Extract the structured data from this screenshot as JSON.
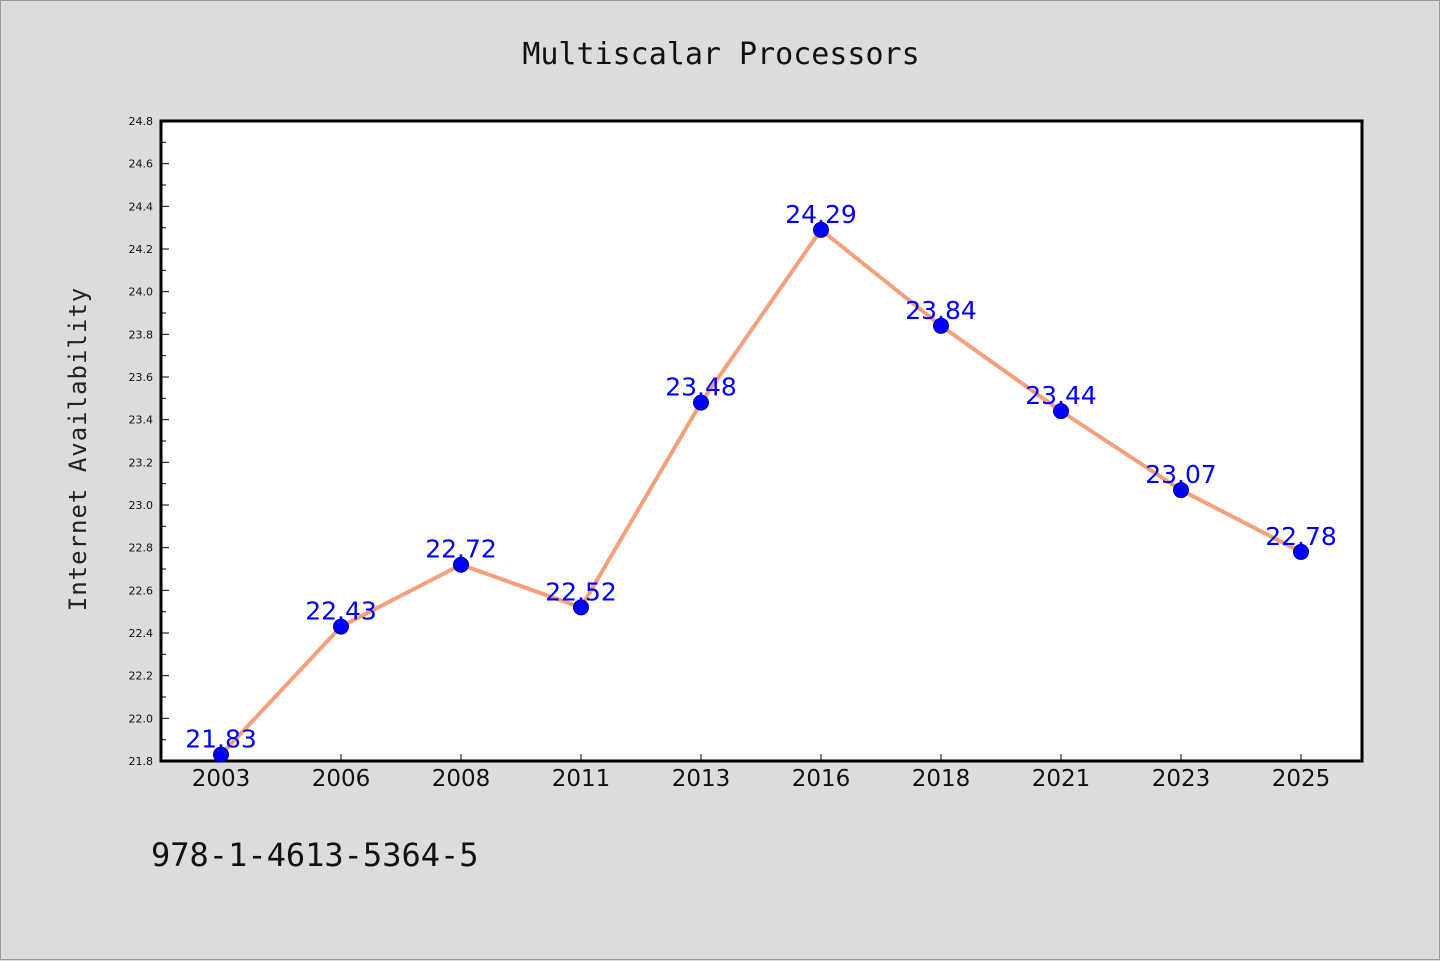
{
  "chart_data": {
    "type": "line",
    "title": "Multiscalar Processors",
    "xlabel": "",
    "ylabel": "Internet Availability",
    "categories": [
      "2003",
      "2006",
      "2008",
      "2011",
      "2013",
      "2016",
      "2018",
      "2021",
      "2023",
      "2025"
    ],
    "series": [
      {
        "values": [
          21.83,
          22.43,
          22.72,
          22.52,
          23.48,
          24.29,
          23.84,
          23.44,
          23.07,
          22.78
        ]
      }
    ],
    "data_labels": [
      "21.83",
      "22.43",
      "22.72",
      "22.52",
      "23.48",
      "24.29",
      "23.84",
      "23.44",
      "23.07",
      "22.78"
    ],
    "ylim": [
      21.8,
      24.8
    ],
    "yticks": [
      21.8,
      22.0,
      22.2,
      22.4,
      22.6,
      22.8,
      23.0,
      23.2,
      23.4,
      23.6,
      23.8,
      24.0,
      24.2,
      24.4,
      24.6,
      24.8
    ],
    "ytick_labels": [
      "21.8",
      "22.0",
      "22.2",
      "22.4",
      "22.6",
      "22.8",
      "23.0",
      "23.2",
      "23.4",
      "23.6",
      "23.8",
      "24.0",
      "24.2",
      "24.4",
      "24.6",
      "24.8"
    ],
    "grid": false,
    "legend": "none",
    "colors": {
      "line": "#f4a07c",
      "marker": "#0000ff",
      "data_label": "#0000ff",
      "plot_background": "#ffffff",
      "figure_background": "#dcdcdc"
    }
  },
  "footer": {
    "text": "978-1-4613-5364-5"
  }
}
